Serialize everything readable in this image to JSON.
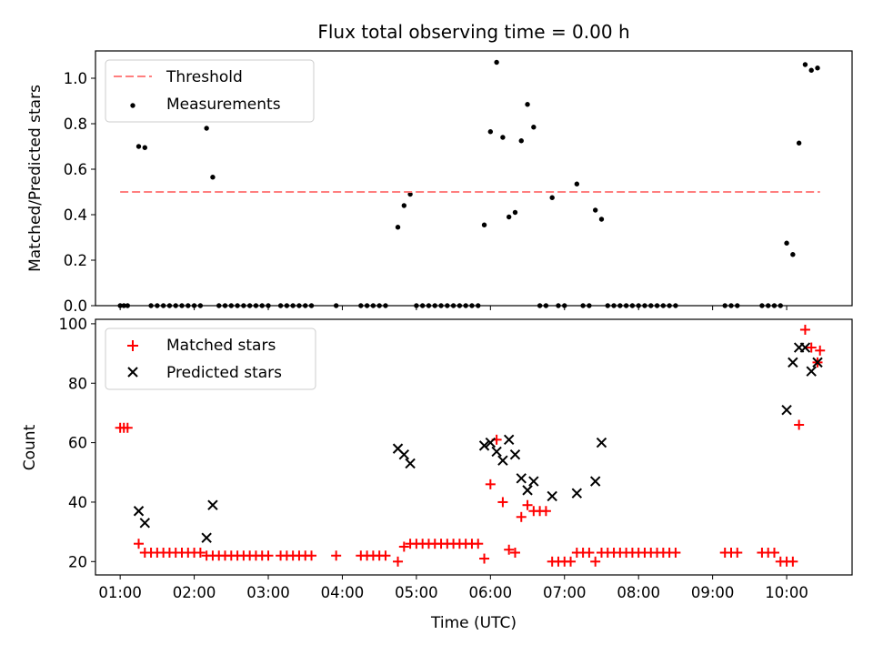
{
  "chart_data": [
    {
      "type": "scatter",
      "title": "Flux total observing time = 0.00 h",
      "ylabel": "Matched/Predicted stars",
      "ylim": [
        0,
        1.12
      ],
      "yticks": [
        0.0,
        0.2,
        0.4,
        0.6,
        0.8,
        1.0
      ],
      "ytick_labels": [
        "0.0",
        "0.2",
        "0.4",
        "0.6",
        "0.8",
        "1.0"
      ],
      "legend": {
        "position": "upper-left",
        "entries": [
          "Threshold",
          "Measurements"
        ]
      },
      "threshold": {
        "name": "Threshold",
        "value": 0.5,
        "x_start": "01:00",
        "x_end": "10:27",
        "color": "#ff7f7f"
      },
      "series": [
        {
          "name": "Measurements",
          "color": "#000000",
          "points": [
            [
              "01:00",
              0
            ],
            [
              "01:03",
              0
            ],
            [
              "01:06",
              0
            ],
            [
              "01:15",
              0.7
            ],
            [
              "01:20",
              0.695
            ],
            [
              "01:25",
              0
            ],
            [
              "01:30",
              0
            ],
            [
              "01:35",
              0
            ],
            [
              "01:40",
              0
            ],
            [
              "01:45",
              0
            ],
            [
              "01:50",
              0
            ],
            [
              "01:55",
              0
            ],
            [
              "02:00",
              0
            ],
            [
              "02:05",
              0
            ],
            [
              "02:10",
              0.78
            ],
            [
              "02:15",
              0.565
            ],
            [
              "02:20",
              0
            ],
            [
              "02:25",
              0
            ],
            [
              "02:30",
              0
            ],
            [
              "02:35",
              0
            ],
            [
              "02:40",
              0
            ],
            [
              "02:45",
              0
            ],
            [
              "02:50",
              0
            ],
            [
              "02:55",
              0
            ],
            [
              "03:00",
              0
            ],
            [
              "03:10",
              0
            ],
            [
              "03:15",
              0
            ],
            [
              "03:20",
              0
            ],
            [
              "03:25",
              0
            ],
            [
              "03:30",
              0
            ],
            [
              "03:35",
              0
            ],
            [
              "03:55",
              0
            ],
            [
              "04:15",
              0
            ],
            [
              "04:20",
              0
            ],
            [
              "04:25",
              0
            ],
            [
              "04:30",
              0
            ],
            [
              "04:35",
              0
            ],
            [
              "04:45",
              0.345
            ],
            [
              "04:50",
              0.44
            ],
            [
              "04:55",
              0.49
            ],
            [
              "05:00",
              0
            ],
            [
              "05:05",
              0
            ],
            [
              "05:10",
              0
            ],
            [
              "05:15",
              0
            ],
            [
              "05:20",
              0
            ],
            [
              "05:25",
              0
            ],
            [
              "05:30",
              0
            ],
            [
              "05:35",
              0
            ],
            [
              "05:40",
              0
            ],
            [
              "05:45",
              0
            ],
            [
              "05:50",
              0
            ],
            [
              "05:55",
              0.355
            ],
            [
              "06:00",
              0.765
            ],
            [
              "06:05",
              1.07
            ],
            [
              "06:10",
              0.74
            ],
            [
              "06:15",
              0.39
            ],
            [
              "06:20",
              0.41
            ],
            [
              "06:25",
              0.725
            ],
            [
              "06:30",
              0.885
            ],
            [
              "06:35",
              0.785
            ],
            [
              "06:40",
              0
            ],
            [
              "06:45",
              0
            ],
            [
              "06:50",
              0.475
            ],
            [
              "06:55",
              0
            ],
            [
              "07:00",
              0
            ],
            [
              "07:10",
              0.535
            ],
            [
              "07:15",
              0
            ],
            [
              "07:20",
              0
            ],
            [
              "07:25",
              0.42
            ],
            [
              "07:30",
              0.38
            ],
            [
              "07:35",
              0
            ],
            [
              "07:40",
              0
            ],
            [
              "07:45",
              0
            ],
            [
              "07:50",
              0
            ],
            [
              "07:55",
              0
            ],
            [
              "08:00",
              0
            ],
            [
              "08:05",
              0
            ],
            [
              "08:10",
              0
            ],
            [
              "08:15",
              0
            ],
            [
              "08:20",
              0
            ],
            [
              "08:25",
              0
            ],
            [
              "08:30",
              0
            ],
            [
              "09:10",
              0
            ],
            [
              "09:15",
              0
            ],
            [
              "09:20",
              0
            ],
            [
              "09:40",
              0
            ],
            [
              "09:45",
              0
            ],
            [
              "09:50",
              0
            ],
            [
              "09:55",
              0
            ],
            [
              "10:00",
              0.275
            ],
            [
              "10:05",
              0.225
            ],
            [
              "10:10",
              0.715
            ],
            [
              "10:15",
              1.06
            ],
            [
              "10:20",
              1.035
            ],
            [
              "10:25",
              1.045
            ]
          ]
        }
      ]
    },
    {
      "type": "scatter",
      "xlabel": "Time (UTC)",
      "ylabel": "Count",
      "ylim": [
        15.5,
        101.5
      ],
      "yticks": [
        20,
        40,
        60,
        80,
        100
      ],
      "ytick_labels": [
        "20",
        "40",
        "60",
        "80",
        "100"
      ],
      "xlim": [
        "00:40",
        "10:53"
      ],
      "xticks": [
        "01:00",
        "02:00",
        "03:00",
        "04:00",
        "05:00",
        "06:00",
        "07:00",
        "08:00",
        "09:00",
        "10:00"
      ],
      "xtick_labels": [
        "01:00",
        "02:00",
        "03:00",
        "04:00",
        "05:00",
        "06:00",
        "07:00",
        "08:00",
        "09:00",
        "10:00"
      ],
      "legend": {
        "position": "upper-left",
        "entries": [
          "Matched stars",
          "Predicted stars"
        ]
      },
      "series": [
        {
          "name": "Matched stars",
          "color": "#ff0000",
          "marker": "plus",
          "points": [
            [
              "01:00",
              65
            ],
            [
              "01:03",
              65
            ],
            [
              "01:06",
              65
            ],
            [
              "01:15",
              26
            ],
            [
              "01:20",
              23
            ],
            [
              "01:25",
              23
            ],
            [
              "01:30",
              23
            ],
            [
              "01:35",
              23
            ],
            [
              "01:40",
              23
            ],
            [
              "01:45",
              23
            ],
            [
              "01:50",
              23
            ],
            [
              "01:55",
              23
            ],
            [
              "02:00",
              23
            ],
            [
              "02:05",
              23
            ],
            [
              "02:10",
              22
            ],
            [
              "02:15",
              22
            ],
            [
              "02:20",
              22
            ],
            [
              "02:25",
              22
            ],
            [
              "02:30",
              22
            ],
            [
              "02:35",
              22
            ],
            [
              "02:40",
              22
            ],
            [
              "02:45",
              22
            ],
            [
              "02:50",
              22
            ],
            [
              "02:55",
              22
            ],
            [
              "03:00",
              22
            ],
            [
              "03:10",
              22
            ],
            [
              "03:15",
              22
            ],
            [
              "03:20",
              22
            ],
            [
              "03:25",
              22
            ],
            [
              "03:30",
              22
            ],
            [
              "03:35",
              22
            ],
            [
              "03:55",
              22
            ],
            [
              "04:15",
              22
            ],
            [
              "04:20",
              22
            ],
            [
              "04:25",
              22
            ],
            [
              "04:30",
              22
            ],
            [
              "04:35",
              22
            ],
            [
              "04:45",
              20
            ],
            [
              "04:50",
              25
            ],
            [
              "04:55",
              26
            ],
            [
              "05:00",
              26
            ],
            [
              "05:05",
              26
            ],
            [
              "05:10",
              26
            ],
            [
              "05:15",
              26
            ],
            [
              "05:20",
              26
            ],
            [
              "05:25",
              26
            ],
            [
              "05:30",
              26
            ],
            [
              "05:35",
              26
            ],
            [
              "05:40",
              26
            ],
            [
              "05:45",
              26
            ],
            [
              "05:50",
              26
            ],
            [
              "05:55",
              21
            ],
            [
              "06:00",
              46
            ],
            [
              "06:05",
              61
            ],
            [
              "06:10",
              40
            ],
            [
              "06:15",
              24
            ],
            [
              "06:20",
              23
            ],
            [
              "06:25",
              35
            ],
            [
              "06:30",
              39
            ],
            [
              "06:35",
              37
            ],
            [
              "06:40",
              37
            ],
            [
              "06:45",
              37
            ],
            [
              "06:50",
              20
            ],
            [
              "06:55",
              20
            ],
            [
              "07:00",
              20
            ],
            [
              "07:05",
              20
            ],
            [
              "07:10",
              23
            ],
            [
              "07:15",
              23
            ],
            [
              "07:20",
              23
            ],
            [
              "07:25",
              20
            ],
            [
              "07:30",
              23
            ],
            [
              "07:35",
              23
            ],
            [
              "07:40",
              23
            ],
            [
              "07:45",
              23
            ],
            [
              "07:50",
              23
            ],
            [
              "07:55",
              23
            ],
            [
              "08:00",
              23
            ],
            [
              "08:05",
              23
            ],
            [
              "08:10",
              23
            ],
            [
              "08:15",
              23
            ],
            [
              "08:20",
              23
            ],
            [
              "08:25",
              23
            ],
            [
              "08:30",
              23
            ],
            [
              "09:10",
              23
            ],
            [
              "09:15",
              23
            ],
            [
              "09:20",
              23
            ],
            [
              "09:40",
              23
            ],
            [
              "09:45",
              23
            ],
            [
              "09:50",
              23
            ],
            [
              "09:55",
              20
            ],
            [
              "10:00",
              20
            ],
            [
              "10:05",
              20
            ],
            [
              "10:10",
              66
            ],
            [
              "10:15",
              98
            ],
            [
              "10:20",
              92
            ],
            [
              "10:25",
              87
            ],
            [
              "10:27",
              91
            ]
          ]
        },
        {
          "name": "Predicted stars",
          "color": "#000000",
          "marker": "x",
          "points": [
            [
              "01:15",
              37
            ],
            [
              "01:20",
              33
            ],
            [
              "02:10",
              28
            ],
            [
              "02:15",
              39
            ],
            [
              "04:45",
              58
            ],
            [
              "04:50",
              56
            ],
            [
              "04:55",
              53
            ],
            [
              "05:55",
              59
            ],
            [
              "06:00",
              60
            ],
            [
              "06:05",
              57
            ],
            [
              "06:10",
              54
            ],
            [
              "06:15",
              61
            ],
            [
              "06:20",
              56
            ],
            [
              "06:25",
              48
            ],
            [
              "06:30",
              44
            ],
            [
              "06:35",
              47
            ],
            [
              "06:50",
              42
            ],
            [
              "07:10",
              43
            ],
            [
              "07:25",
              47
            ],
            [
              "07:30",
              60
            ],
            [
              "10:00",
              71
            ],
            [
              "10:05",
              87
            ],
            [
              "10:10",
              92
            ],
            [
              "10:15",
              92
            ],
            [
              "10:20",
              84
            ],
            [
              "10:25",
              87
            ]
          ]
        }
      ]
    }
  ]
}
